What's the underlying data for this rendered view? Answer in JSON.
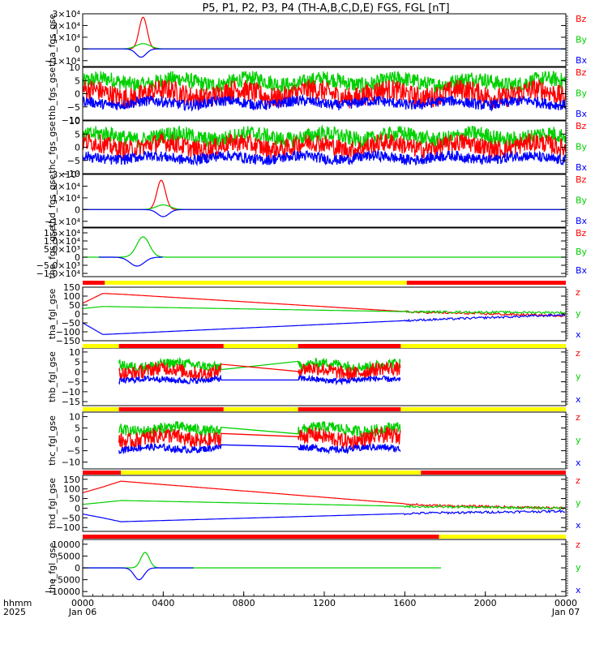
{
  "title": "P5, P1, P2, P3, P4 (TH-A,B,C,D,E) FGS, FGL [nT]",
  "colors": {
    "x": "#0000ff",
    "y": "#00d000",
    "z": "#ff0000",
    "bar_yellow": "#ffff00",
    "bar_red": "#ff0000"
  },
  "time_axis": {
    "label_line1": "hhmm",
    "label_line2": "2025",
    "range_hours": [
      0,
      24
    ],
    "ticks": [
      {
        "h": 0,
        "label": "0000",
        "sub": "Jan 06"
      },
      {
        "h": 4,
        "label": "0400",
        "sub": ""
      },
      {
        "h": 8,
        "label": "0800",
        "sub": ""
      },
      {
        "h": 12,
        "label": "1200",
        "sub": ""
      },
      {
        "h": 16,
        "label": "1600",
        "sub": ""
      },
      {
        "h": 20,
        "label": "2000",
        "sub": ""
      },
      {
        "h": 24,
        "label": "0000",
        "sub": "Jan 07"
      }
    ]
  },
  "chart_data": [
    {
      "type": "line",
      "ylabel": "tha_fgs_gse",
      "ylim": [
        -15000,
        30000
      ],
      "yticks": [
        [
          30000,
          "3×10⁴"
        ],
        [
          20000,
          "2×10⁴"
        ],
        [
          10000,
          "1×10⁴"
        ],
        [
          0,
          "0"
        ],
        [
          -10000,
          "−1×10⁴"
        ]
      ],
      "legend": [
        "Bz",
        "By",
        "Bx"
      ],
      "series": [
        {
          "name": "Bz",
          "color": "z",
          "kind": "peak",
          "peak_t": 3.0,
          "peak": 27000,
          "width": 0.28,
          "span": [
            0,
            24
          ]
        },
        {
          "name": "By",
          "color": "y",
          "kind": "peak",
          "peak_t": 3.0,
          "peak": 4500,
          "width": 0.5,
          "span": [
            0,
            24
          ]
        },
        {
          "name": "Bx",
          "color": "x",
          "kind": "peak",
          "peak_t": 2.9,
          "peak": -7000,
          "width": 0.35,
          "span": [
            0,
            24
          ]
        }
      ]
    },
    {
      "type": "line",
      "ylabel": "thb_fgs_gse",
      "ylim": [
        -10,
        10
      ],
      "yticks": [
        [
          10,
          "10"
        ],
        [
          5,
          "5"
        ],
        [
          0,
          "0"
        ],
        [
          -5,
          "−5"
        ],
        [
          -10,
          "−10"
        ]
      ],
      "legend": [
        "Bz",
        "By",
        "Bx"
      ],
      "series": [
        {
          "name": "By",
          "color": "y",
          "kind": "noise",
          "base": 4.5,
          "amp": 3.0,
          "span": [
            0,
            24
          ]
        },
        {
          "name": "Bz",
          "color": "z",
          "kind": "noise",
          "base": 0.0,
          "amp": 4.0,
          "span": [
            0,
            24
          ]
        },
        {
          "name": "Bx",
          "color": "x",
          "kind": "noise",
          "base": -3.5,
          "amp": 2.0,
          "span": [
            0,
            24
          ]
        }
      ]
    },
    {
      "type": "line",
      "ylabel": "thc_fgs_gse",
      "ylim": [
        -10,
        10
      ],
      "yticks": [
        [
          10,
          "10"
        ],
        [
          5,
          "5"
        ],
        [
          0,
          "0"
        ],
        [
          -5,
          "−5"
        ],
        [
          -10,
          "−10"
        ]
      ],
      "legend": [
        "Bz",
        "By",
        "Bx"
      ],
      "series": [
        {
          "name": "By",
          "color": "y",
          "kind": "noise",
          "base": 4.0,
          "amp": 3.0,
          "span": [
            0,
            24
          ]
        },
        {
          "name": "Bz",
          "color": "z",
          "kind": "noise",
          "base": 0.5,
          "amp": 3.5,
          "span": [
            0,
            24
          ]
        },
        {
          "name": "Bx",
          "color": "x",
          "kind": "noise",
          "base": -4.0,
          "amp": 2.0,
          "span": [
            0,
            24
          ]
        }
      ]
    },
    {
      "type": "line",
      "ylabel": "thd_fgs_gse",
      "ylim": [
        -15000,
        30000
      ],
      "yticks": [
        [
          30000,
          "3×10⁴"
        ],
        [
          20000,
          "2×10⁴"
        ],
        [
          10000,
          "1×10⁴"
        ],
        [
          0,
          "0"
        ],
        [
          -10000,
          "−1×10⁴"
        ]
      ],
      "legend": [
        "Bz",
        "By",
        "Bx"
      ],
      "series": [
        {
          "name": "Bz",
          "color": "z",
          "kind": "peak",
          "peak_t": 3.9,
          "peak": 25000,
          "width": 0.3,
          "span": [
            0,
            24
          ]
        },
        {
          "name": "By",
          "color": "y",
          "kind": "peak",
          "peak_t": 4.0,
          "peak": 4000,
          "width": 0.5,
          "span": [
            0,
            24
          ]
        },
        {
          "name": "Bx",
          "color": "x",
          "kind": "peak",
          "peak_t": 4.0,
          "peak": -6000,
          "width": 0.4,
          "span": [
            0,
            24
          ]
        }
      ]
    },
    {
      "type": "line",
      "ylabel": "the_fgs_gse",
      "ylim": [
        -12000,
        18000
      ],
      "yticks": [
        [
          15000,
          "1.5×10⁴"
        ],
        [
          10000,
          "1.0×10⁴"
        ],
        [
          5000,
          "5.0×10³"
        ],
        [
          0,
          "0"
        ],
        [
          -5000,
          "−5.0×10³"
        ],
        [
          -10000,
          "−1.0×10⁴"
        ]
      ],
      "legend": [
        "Bz",
        "By",
        "Bx"
      ],
      "series": [
        {
          "name": "By",
          "color": "y",
          "kind": "peak",
          "peak_t": 3.0,
          "peak": 12500,
          "width": 0.45,
          "span": [
            0,
            24
          ]
        },
        {
          "name": "Bx",
          "color": "x",
          "kind": "peak",
          "peak_t": 2.7,
          "peak": -5500,
          "width": 0.5,
          "span": [
            0.8,
            4.0
          ]
        }
      ]
    },
    {
      "type": "line",
      "ylabel": "tha_fgl_gse",
      "ylim": [
        -150,
        150
      ],
      "yticks": [
        [
          150,
          "150"
        ],
        [
          100,
          "100"
        ],
        [
          50,
          "50"
        ],
        [
          0,
          "0"
        ],
        [
          -50,
          "−50"
        ],
        [
          -100,
          "−100"
        ],
        [
          -150,
          "−150"
        ]
      ],
      "legend": [
        "z",
        "y",
        "x"
      ],
      "series": [
        {
          "name": "z",
          "color": "z",
          "kind": "path",
          "pts": [
            [
              0,
              60
            ],
            [
              1.0,
              115
            ],
            [
              2.0,
              110
            ],
            [
              16.5,
              10
            ],
            [
              24,
              -10
            ]
          ],
          "span": [
            0,
            24
          ]
        },
        {
          "name": "y",
          "color": "y",
          "kind": "path",
          "pts": [
            [
              0,
              30
            ],
            [
              1.0,
              42
            ],
            [
              2.0,
              40
            ],
            [
              16.5,
              12
            ],
            [
              24,
              8
            ]
          ],
          "span": [
            0,
            24
          ]
        },
        {
          "name": "x",
          "color": "x",
          "kind": "path",
          "pts": [
            [
              0,
              -50
            ],
            [
              1.0,
              -115
            ],
            [
              2.0,
              -110
            ],
            [
              16.5,
              -35
            ],
            [
              24,
              -5
            ]
          ],
          "span": [
            0,
            24
          ]
        }
      ]
    },
    {
      "type": "line",
      "ylabel": "thb_fgl_gse",
      "ylim": [
        -17,
        12
      ],
      "yticks": [
        [
          10,
          "10"
        ],
        [
          5,
          "5"
        ],
        [
          0,
          "0"
        ],
        [
          -5,
          "−5"
        ],
        [
          -10,
          "−10"
        ],
        [
          -15,
          "−15"
        ]
      ],
      "legend": [
        "z",
        "y",
        "x"
      ],
      "series": [
        {
          "name": "y",
          "color": "y",
          "kind": "noise",
          "base": 3.5,
          "amp": 2.5,
          "span": [
            1.8,
            6.9
          ],
          "span2": [
            10.7,
            15.8
          ],
          "join": true
        },
        {
          "name": "z",
          "color": "z",
          "kind": "noise",
          "base": 0.5,
          "amp": 3.5,
          "span": [
            1.8,
            6.9
          ],
          "span2": [
            10.7,
            15.8
          ],
          "join": true
        },
        {
          "name": "x",
          "color": "x",
          "kind": "noise",
          "base": -4.0,
          "amp": 1.5,
          "span": [
            1.8,
            6.9
          ],
          "span2": [
            10.7,
            15.8
          ],
          "join": true
        }
      ]
    },
    {
      "type": "line",
      "ylabel": "thc_fgl_gse",
      "ylim": [
        -13,
        12
      ],
      "yticks": [
        [
          10,
          "10"
        ],
        [
          5,
          "5"
        ],
        [
          0,
          "0"
        ],
        [
          -5,
          "−5"
        ],
        [
          -10,
          "−10"
        ]
      ],
      "legend": [
        "z",
        "y",
        "x"
      ],
      "series": [
        {
          "name": "y",
          "color": "y",
          "kind": "noise",
          "base": 4.5,
          "amp": 2.5,
          "span": [
            1.8,
            6.9
          ],
          "span2": [
            10.7,
            15.8
          ],
          "join": true
        },
        {
          "name": "z",
          "color": "z",
          "kind": "noise",
          "base": 0.5,
          "amp": 3.5,
          "span": [
            1.8,
            6.9
          ],
          "span2": [
            10.7,
            15.8
          ],
          "join": true
        },
        {
          "name": "x",
          "color": "x",
          "kind": "noise",
          "base": -4.0,
          "amp": 1.5,
          "span": [
            1.8,
            6.9
          ],
          "span2": [
            10.7,
            15.8
          ],
          "join": true
        }
      ]
    },
    {
      "type": "line",
      "ylabel": "thd_fgl_gse",
      "ylim": [
        -120,
        170
      ],
      "yticks": [
        [
          150,
          "150"
        ],
        [
          100,
          "100"
        ],
        [
          50,
          "50"
        ],
        [
          0,
          "0"
        ],
        [
          -50,
          "−50"
        ],
        [
          -100,
          "−100"
        ]
      ],
      "legend": [
        "z",
        "y",
        "x"
      ],
      "series": [
        {
          "name": "z",
          "color": "z",
          "kind": "path",
          "pts": [
            [
              0,
              80
            ],
            [
              1.0,
              110
            ],
            [
              1.9,
              140
            ],
            [
              17,
              15
            ],
            [
              24,
              0
            ]
          ],
          "span": [
            0,
            24
          ]
        },
        {
          "name": "y",
          "color": "y",
          "kind": "path",
          "pts": [
            [
              0,
              20
            ],
            [
              1.0,
              30
            ],
            [
              1.9,
              40
            ],
            [
              17,
              8
            ],
            [
              24,
              0
            ]
          ],
          "span": [
            0,
            24
          ]
        },
        {
          "name": "x",
          "color": "x",
          "kind": "path",
          "pts": [
            [
              0,
              -30
            ],
            [
              1.0,
              -50
            ],
            [
              1.9,
              -70
            ],
            [
              17,
              -25
            ],
            [
              24,
              -15
            ]
          ],
          "span": [
            0,
            24
          ]
        }
      ]
    },
    {
      "type": "line",
      "ylabel": "the_fgl_gse",
      "ylim": [
        -12000,
        12000
      ],
      "yticks": [
        [
          10000,
          "10000"
        ],
        [
          5000,
          "5000"
        ],
        [
          0,
          "0"
        ],
        [
          -5000,
          "−5000"
        ],
        [
          -10000,
          "−10000"
        ]
      ],
      "legend": [
        "z",
        "y",
        "x"
      ],
      "series": [
        {
          "name": "y",
          "color": "y",
          "kind": "peak",
          "peak_t": 3.1,
          "peak": 6500,
          "width": 0.3,
          "span": [
            0,
            17.8
          ]
        },
        {
          "name": "x",
          "color": "x",
          "kind": "peak",
          "peak_t": 2.8,
          "peak": -5000,
          "width": 0.35,
          "span": [
            0,
            5.5
          ]
        }
      ]
    }
  ],
  "status_bars": [
    [
      [
        "red",
        0,
        1.1
      ],
      [
        "yellow",
        1.1,
        16.1
      ],
      [
        "red",
        16.1,
        24
      ]
    ],
    [
      [
        "yellow",
        0,
        1.8
      ],
      [
        "red",
        1.8,
        7.0
      ],
      [
        "yellow",
        7.0,
        10.7
      ],
      [
        "red",
        10.7,
        15.8
      ],
      [
        "yellow",
        15.8,
        24
      ]
    ],
    [
      [
        "yellow",
        0,
        1.8
      ],
      [
        "red",
        1.8,
        7.0
      ],
      [
        "yellow",
        7.0,
        10.7
      ],
      [
        "red",
        10.7,
        15.8
      ],
      [
        "yellow",
        15.8,
        24
      ]
    ],
    [
      [
        "red",
        0,
        1.9
      ],
      [
        "yellow",
        1.9,
        16.8
      ],
      [
        "red",
        16.8,
        24
      ]
    ],
    [
      [
        "red",
        0,
        17.7
      ],
      [
        "yellow",
        17.7,
        24
      ]
    ]
  ]
}
